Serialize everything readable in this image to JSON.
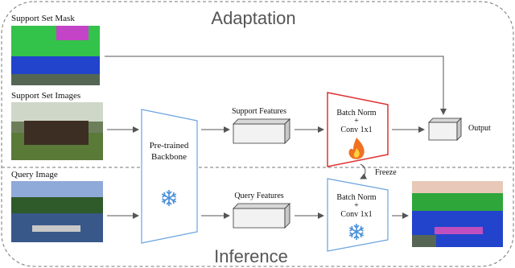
{
  "sections": {
    "adaptation": "Adaptation",
    "inference": "Inference"
  },
  "inputs": {
    "support_mask": "Support Set Mask",
    "support_images": "Support Set Images",
    "query_image": "Query Image"
  },
  "nodes": {
    "backbone": {
      "line1": "Pre-trained",
      "line2": "Backbone"
    },
    "support_features": "Support Features",
    "adapt_head": {
      "line1": "Batch Norm",
      "line2": "+",
      "line3": "Conv 1x1"
    },
    "output": "Output",
    "query_features": "Query Features",
    "infer_head": {
      "line1": "Batch Norm",
      "line2": "+",
      "line3": "Conv 1x1"
    }
  },
  "labels": {
    "freeze": "Freeze"
  }
}
